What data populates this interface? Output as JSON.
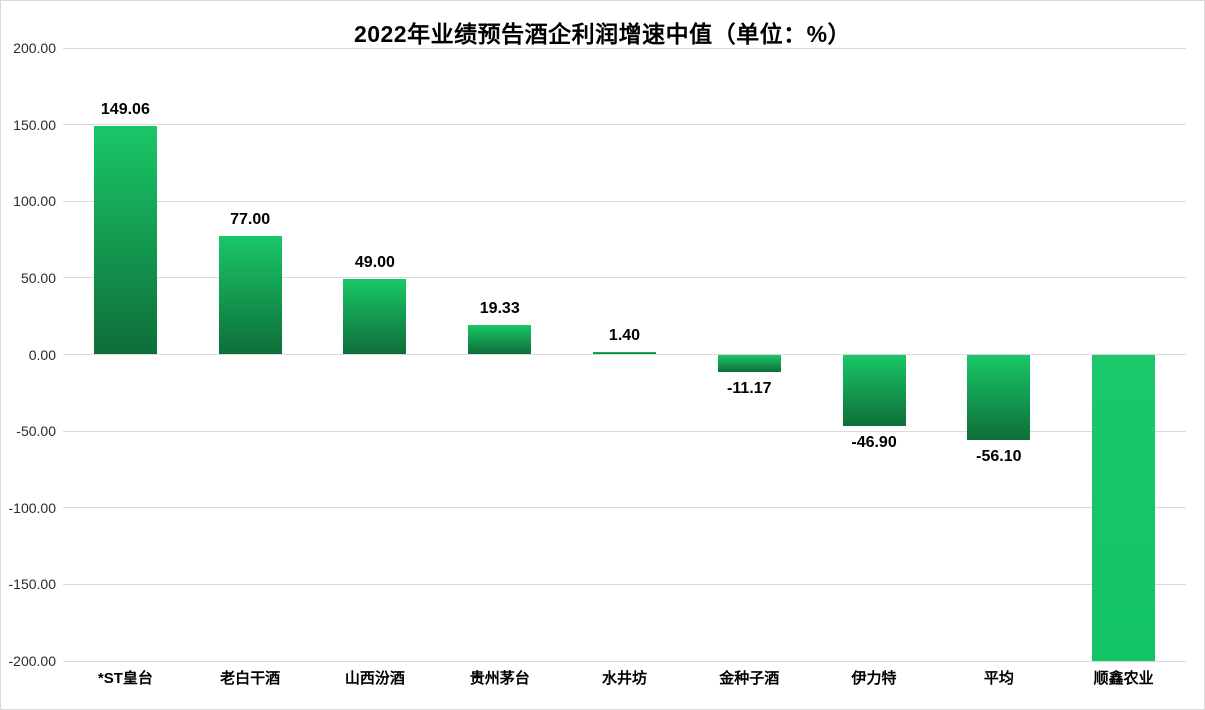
{
  "title": "2022年业绩预告酒企利润增速中值（单位：%）",
  "chart_data": {
    "type": "bar",
    "title": "2022年业绩预告酒企利润增速中值（单位：%）",
    "categories": [
      "*ST皇台",
      "老白干酒",
      "山西汾酒",
      "贵州茅台",
      "水井坊",
      "金种子酒",
      "伊力特",
      "平均",
      "顺鑫农业"
    ],
    "values": [
      149.06,
      77.0,
      49.0,
      19.33,
      1.4,
      -11.17,
      -46.9,
      -56.1,
      -200.0
    ],
    "data_labels": [
      "149.06",
      "77.00",
      "49.00",
      "19.33",
      "1.40",
      "-11.17",
      "-46.90",
      "-56.10",
      ""
    ],
    "clipped_at_axis": [
      false,
      false,
      false,
      false,
      false,
      false,
      false,
      false,
      true
    ],
    "xlabel": "",
    "ylabel": "",
    "ylim": [
      -200,
      200
    ],
    "ytick_step": 50,
    "y_axis_ticks": [
      "200.00",
      "150.00",
      "100.00",
      "50.00",
      "0.00",
      "-50.00",
      "-100.00",
      "-150.00",
      "-200.00"
    ],
    "grid": true,
    "legend_position": "none",
    "colors": {
      "bar_gradient_top": "#19C767",
      "bar_gradient_bottom": "#0E6E3A",
      "bar_clipped_top": "#1AC869",
      "bar_clipped_bottom": "#11C464",
      "gridline": "#DADADA",
      "title_text": "#000000",
      "data_label_text": "#000000",
      "axis_tick_text": "#2B2B2B",
      "background": "#FFFFFF",
      "border": "#D9D9D9"
    }
  }
}
